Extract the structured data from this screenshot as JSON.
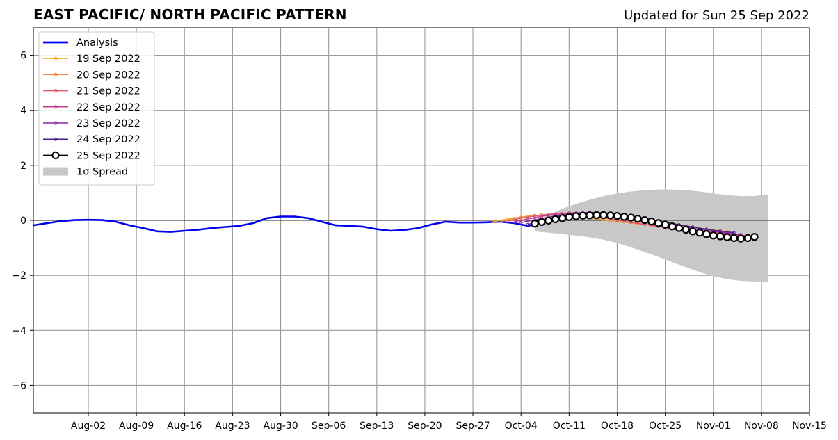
{
  "header": {
    "title": "EAST PACIFIC/ NORTH PACIFIC PATTERN",
    "subtitle": "Updated for Sun 25 Sep 2022"
  },
  "chart_data": {
    "type": "line",
    "title": "EAST PACIFIC/ NORTH PACIFIC PATTERN",
    "xlabel": "",
    "ylabel": "",
    "xlim": [
      "2022-07-25",
      "2022-11-15"
    ],
    "ylim": [
      -7,
      7
    ],
    "grid": true,
    "legend_position": "top-left",
    "x_ticks": [
      "Aug-02",
      "Aug-09",
      "Aug-16",
      "Aug-23",
      "Aug-30",
      "Sep-06",
      "Sep-13",
      "Sep-20",
      "Sep-27",
      "Oct-04",
      "Oct-11",
      "Oct-18",
      "Oct-25",
      "Nov-01",
      "Nov-08",
      "Nov-15"
    ],
    "x_tick_dates": [
      "2022-08-02",
      "2022-08-09",
      "2022-08-16",
      "2022-08-23",
      "2022-08-30",
      "2022-09-06",
      "2022-09-13",
      "2022-09-20",
      "2022-09-27",
      "2022-10-04",
      "2022-10-11",
      "2022-10-18",
      "2022-10-25",
      "2022-11-01",
      "2022-11-08",
      "2022-11-15"
    ],
    "y_ticks": [
      -6,
      -4,
      -2,
      0,
      2,
      4,
      6
    ],
    "y_tick_labels": [
      "−6",
      "−4",
      "−2",
      "0",
      "2",
      "4",
      "6"
    ],
    "series": [
      {
        "name": "Analysis",
        "color": "#0000ee",
        "marker": "none",
        "points": [
          [
            "2022-07-25",
            -0.18
          ],
          [
            "2022-07-27",
            -0.1
          ],
          [
            "2022-07-29",
            -0.03
          ],
          [
            "2022-07-31",
            0.01
          ],
          [
            "2022-08-02",
            0.02
          ],
          [
            "2022-08-04",
            0.01
          ],
          [
            "2022-08-06",
            -0.05
          ],
          [
            "2022-08-08",
            -0.18
          ],
          [
            "2022-08-10",
            -0.28
          ],
          [
            "2022-08-12",
            -0.4
          ],
          [
            "2022-08-14",
            -0.42
          ],
          [
            "2022-08-16",
            -0.38
          ],
          [
            "2022-08-18",
            -0.34
          ],
          [
            "2022-08-20",
            -0.28
          ],
          [
            "2022-08-22",
            -0.24
          ],
          [
            "2022-08-24",
            -0.2
          ],
          [
            "2022-08-26",
            -0.1
          ],
          [
            "2022-08-28",
            0.08
          ],
          [
            "2022-08-30",
            0.14
          ],
          [
            "2022-09-01",
            0.14
          ],
          [
            "2022-09-03",
            0.08
          ],
          [
            "2022-09-05",
            -0.05
          ],
          [
            "2022-09-07",
            -0.18
          ],
          [
            "2022-09-09",
            -0.2
          ],
          [
            "2022-09-11",
            -0.23
          ],
          [
            "2022-09-13",
            -0.32
          ],
          [
            "2022-09-15",
            -0.38
          ],
          [
            "2022-09-17",
            -0.35
          ],
          [
            "2022-09-19",
            -0.28
          ],
          [
            "2022-09-21",
            -0.15
          ],
          [
            "2022-09-23",
            -0.05
          ],
          [
            "2022-09-25",
            -0.08
          ],
          [
            "2022-09-27",
            -0.08
          ],
          [
            "2022-09-29",
            -0.07
          ],
          [
            "2022-10-01",
            -0.05
          ],
          [
            "2022-10-03",
            -0.1
          ],
          [
            "2022-10-05",
            -0.2
          ],
          [
            "2022-10-06",
            -0.15
          ]
        ]
      },
      {
        "name": "19 Sep 2022",
        "color": "#fcb33b",
        "marker": "dot",
        "points": [
          [
            "2022-09-30",
            -0.05
          ],
          [
            "2022-10-02",
            0.05
          ],
          [
            "2022-10-04",
            0.12
          ],
          [
            "2022-10-06",
            0.18
          ],
          [
            "2022-10-08",
            0.2
          ],
          [
            "2022-10-10",
            0.2
          ],
          [
            "2022-10-12",
            0.15
          ],
          [
            "2022-10-14",
            0.08
          ],
          [
            "2022-10-16",
            0.02
          ],
          [
            "2022-10-18",
            -0.02
          ],
          [
            "2022-10-20",
            -0.05
          ],
          [
            "2022-10-22",
            -0.08
          ],
          [
            "2022-10-24",
            -0.12
          ],
          [
            "2022-10-26",
            -0.17
          ],
          [
            "2022-10-28",
            -0.23
          ],
          [
            "2022-10-30",
            -0.29
          ],
          [
            "2022-11-01",
            -0.35
          ],
          [
            "2022-11-03",
            -0.4
          ]
        ]
      },
      {
        "name": "20 Sep 2022",
        "color": "#f08a45",
        "marker": "dot",
        "points": [
          [
            "2022-10-01",
            -0.04
          ],
          [
            "2022-10-03",
            0.06
          ],
          [
            "2022-10-05",
            0.14
          ],
          [
            "2022-10-07",
            0.2
          ],
          [
            "2022-10-09",
            0.22
          ],
          [
            "2022-10-11",
            0.2
          ],
          [
            "2022-10-13",
            0.14
          ],
          [
            "2022-10-15",
            0.06
          ],
          [
            "2022-10-17",
            -0.01
          ],
          [
            "2022-10-19",
            -0.06
          ],
          [
            "2022-10-21",
            -0.12
          ],
          [
            "2022-10-23",
            -0.18
          ],
          [
            "2022-10-25",
            -0.24
          ],
          [
            "2022-10-27",
            -0.3
          ],
          [
            "2022-10-29",
            -0.36
          ],
          [
            "2022-10-31",
            -0.42
          ],
          [
            "2022-11-02",
            -0.46
          ]
        ]
      },
      {
        "name": "21 Sep 2022",
        "color": "#e05a6a",
        "marker": "dot",
        "points": [
          [
            "2022-10-02",
            -0.03
          ],
          [
            "2022-10-04",
            0.08
          ],
          [
            "2022-10-06",
            0.16
          ],
          [
            "2022-10-08",
            0.22
          ],
          [
            "2022-10-10",
            0.25
          ],
          [
            "2022-10-12",
            0.24
          ],
          [
            "2022-10-14",
            0.18
          ],
          [
            "2022-10-16",
            0.1
          ],
          [
            "2022-10-18",
            0.01
          ],
          [
            "2022-10-20",
            -0.07
          ],
          [
            "2022-10-22",
            -0.15
          ],
          [
            "2022-10-24",
            -0.22
          ],
          [
            "2022-10-26",
            -0.3
          ],
          [
            "2022-10-28",
            -0.37
          ],
          [
            "2022-10-30",
            -0.43
          ],
          [
            "2022-11-01",
            -0.48
          ],
          [
            "2022-11-03",
            -0.52
          ],
          [
            "2022-11-05",
            -0.55
          ]
        ]
      },
      {
        "name": "22 Sep 2022",
        "color": "#c43c8c",
        "marker": "dot",
        "points": [
          [
            "2022-10-03",
            -0.05
          ],
          [
            "2022-10-05",
            0.05
          ],
          [
            "2022-10-07",
            0.15
          ],
          [
            "2022-10-09",
            0.22
          ],
          [
            "2022-10-11",
            0.27
          ],
          [
            "2022-10-13",
            0.28
          ],
          [
            "2022-10-15",
            0.25
          ],
          [
            "2022-10-17",
            0.18
          ],
          [
            "2022-10-19",
            0.08
          ],
          [
            "2022-10-21",
            -0.02
          ],
          [
            "2022-10-23",
            -0.12
          ],
          [
            "2022-10-25",
            -0.2
          ],
          [
            "2022-10-27",
            -0.28
          ],
          [
            "2022-10-29",
            -0.35
          ],
          [
            "2022-10-31",
            -0.42
          ],
          [
            "2022-11-02",
            -0.47
          ],
          [
            "2022-11-04",
            -0.52
          ],
          [
            "2022-11-06",
            -0.56
          ]
        ]
      },
      {
        "name": "23 Sep 2022",
        "color": "#8c29a4",
        "marker": "dot",
        "points": [
          [
            "2022-10-04",
            -0.08
          ],
          [
            "2022-10-06",
            0.02
          ],
          [
            "2022-10-08",
            0.12
          ],
          [
            "2022-10-10",
            0.2
          ],
          [
            "2022-10-12",
            0.26
          ],
          [
            "2022-10-14",
            0.29
          ],
          [
            "2022-10-16",
            0.28
          ],
          [
            "2022-10-18",
            0.22
          ],
          [
            "2022-10-20",
            0.12
          ],
          [
            "2022-10-22",
            0.02
          ],
          [
            "2022-10-24",
            -0.08
          ],
          [
            "2022-10-26",
            -0.17
          ],
          [
            "2022-10-28",
            -0.25
          ],
          [
            "2022-10-30",
            -0.33
          ],
          [
            "2022-11-01",
            -0.4
          ],
          [
            "2022-11-03",
            -0.46
          ],
          [
            "2022-11-05",
            -0.52
          ]
        ]
      },
      {
        "name": "24 Sep 2022",
        "color": "#4b1c8c",
        "marker": "dot",
        "points": [
          [
            "2022-10-05",
            -0.15
          ],
          [
            "2022-10-07",
            -0.02
          ],
          [
            "2022-10-09",
            0.1
          ],
          [
            "2022-10-11",
            0.18
          ],
          [
            "2022-10-13",
            0.23
          ],
          [
            "2022-10-15",
            0.25
          ],
          [
            "2022-10-17",
            0.24
          ],
          [
            "2022-10-19",
            0.2
          ],
          [
            "2022-10-21",
            0.12
          ],
          [
            "2022-10-23",
            0.03
          ],
          [
            "2022-10-25",
            -0.07
          ],
          [
            "2022-10-27",
            -0.16
          ],
          [
            "2022-10-29",
            -0.24
          ],
          [
            "2022-10-31",
            -0.32
          ],
          [
            "2022-11-02",
            -0.39
          ],
          [
            "2022-11-04",
            -0.45
          ]
        ]
      },
      {
        "name": "25 Sep 2022",
        "color": "#000000",
        "marker": "circle",
        "points": [
          [
            "2022-10-06",
            -0.12
          ],
          [
            "2022-10-07",
            -0.06
          ],
          [
            "2022-10-08",
            -0.01
          ],
          [
            "2022-10-09",
            0.04
          ],
          [
            "2022-10-10",
            0.08
          ],
          [
            "2022-10-11",
            0.12
          ],
          [
            "2022-10-12",
            0.15
          ],
          [
            "2022-10-13",
            0.17
          ],
          [
            "2022-10-14",
            0.18
          ],
          [
            "2022-10-15",
            0.19
          ],
          [
            "2022-10-16",
            0.19
          ],
          [
            "2022-10-17",
            0.18
          ],
          [
            "2022-10-18",
            0.16
          ],
          [
            "2022-10-19",
            0.13
          ],
          [
            "2022-10-20",
            0.1
          ],
          [
            "2022-10-21",
            0.06
          ],
          [
            "2022-10-22",
            0.01
          ],
          [
            "2022-10-23",
            -0.04
          ],
          [
            "2022-10-24",
            -0.1
          ],
          [
            "2022-10-25",
            -0.16
          ],
          [
            "2022-10-26",
            -0.22
          ],
          [
            "2022-10-27",
            -0.28
          ],
          [
            "2022-10-28",
            -0.34
          ],
          [
            "2022-10-29",
            -0.4
          ],
          [
            "2022-10-30",
            -0.45
          ],
          [
            "2022-10-31",
            -0.5
          ],
          [
            "2022-11-01",
            -0.55
          ],
          [
            "2022-11-02",
            -0.58
          ],
          [
            "2022-11-03",
            -0.61
          ],
          [
            "2022-11-04",
            -0.64
          ],
          [
            "2022-11-05",
            -0.66
          ],
          [
            "2022-11-06",
            -0.64
          ],
          [
            "2022-11-07",
            -0.6
          ]
        ]
      }
    ],
    "spread": {
      "name": "1σ Spread",
      "color": "#c8c8c8",
      "upper": [
        [
          "2022-10-06",
          -0.05
        ],
        [
          "2022-10-08",
          0.2
        ],
        [
          "2022-10-10",
          0.42
        ],
        [
          "2022-10-12",
          0.6
        ],
        [
          "2022-10-14",
          0.75
        ],
        [
          "2022-10-16",
          0.88
        ],
        [
          "2022-10-18",
          0.98
        ],
        [
          "2022-10-20",
          1.05
        ],
        [
          "2022-10-22",
          1.1
        ],
        [
          "2022-10-24",
          1.12
        ],
        [
          "2022-10-26",
          1.12
        ],
        [
          "2022-10-28",
          1.1
        ],
        [
          "2022-10-30",
          1.05
        ],
        [
          "2022-11-01",
          0.98
        ],
        [
          "2022-11-03",
          0.92
        ],
        [
          "2022-11-05",
          0.88
        ],
        [
          "2022-11-07",
          0.88
        ],
        [
          "2022-11-09",
          0.95
        ]
      ],
      "lower": [
        [
          "2022-10-06",
          -0.4
        ],
        [
          "2022-10-08",
          -0.45
        ],
        [
          "2022-10-10",
          -0.5
        ],
        [
          "2022-10-12",
          -0.55
        ],
        [
          "2022-10-14",
          -0.62
        ],
        [
          "2022-10-16",
          -0.7
        ],
        [
          "2022-10-18",
          -0.82
        ],
        [
          "2022-10-20",
          -0.98
        ],
        [
          "2022-10-22",
          -1.15
        ],
        [
          "2022-10-24",
          -1.33
        ],
        [
          "2022-10-26",
          -1.52
        ],
        [
          "2022-10-28",
          -1.7
        ],
        [
          "2022-10-30",
          -1.88
        ],
        [
          "2022-11-01",
          -2.03
        ],
        [
          "2022-11-03",
          -2.14
        ],
        [
          "2022-11-05",
          -2.2
        ],
        [
          "2022-11-07",
          -2.22
        ],
        [
          "2022-11-09",
          -2.22
        ]
      ]
    }
  }
}
